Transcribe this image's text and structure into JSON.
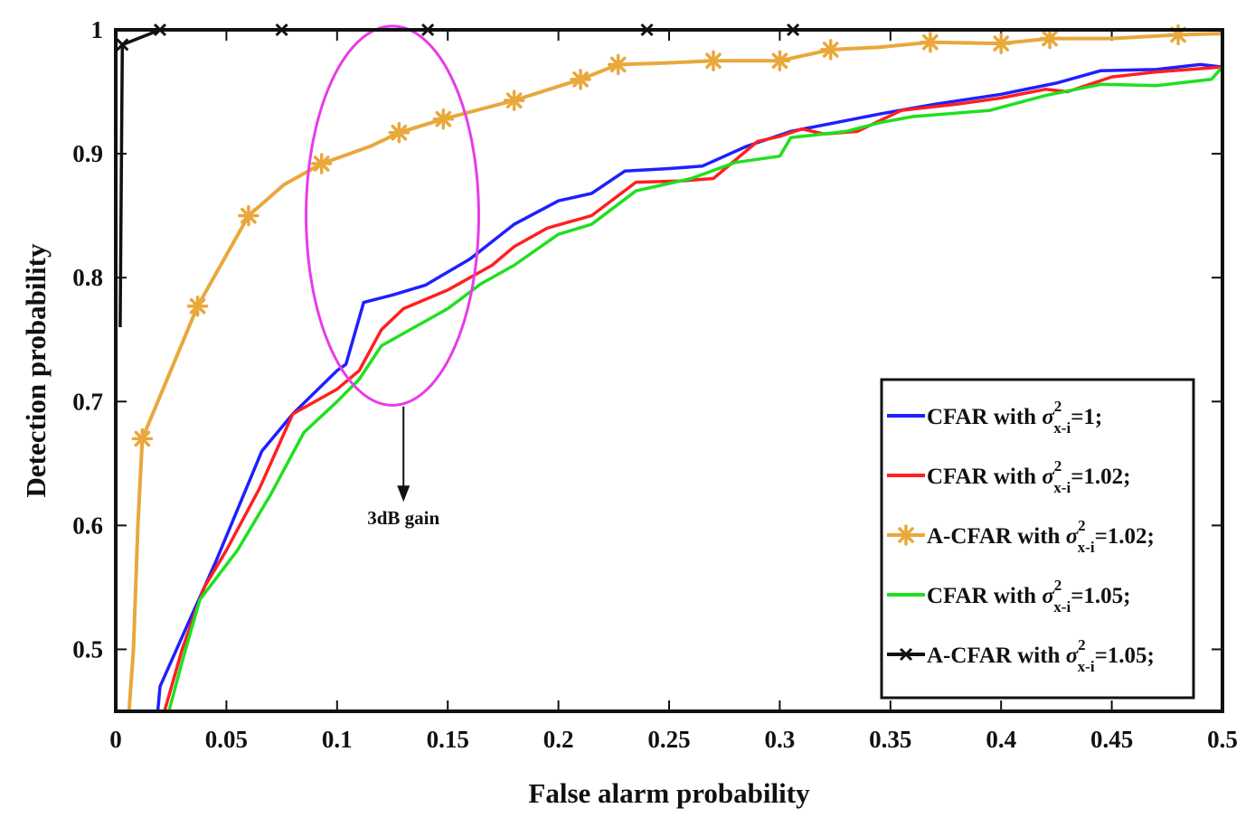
{
  "chart_data": {
    "type": "line",
    "title": "",
    "xlabel": "False alarm probability",
    "ylabel": "Detection probability",
    "xlim": [
      0,
      0.5
    ],
    "ylim": [
      0.45,
      1.0
    ],
    "xticks": [
      0,
      0.05,
      0.1,
      0.15,
      0.2,
      0.25,
      0.3,
      0.35,
      0.4,
      0.45,
      0.5
    ],
    "xtick_labels": [
      "0",
      "0.05",
      "0.1",
      "0.15",
      "0.2",
      "0.25",
      "0.3",
      "0.35",
      "0.4",
      "0.45",
      "0.5"
    ],
    "yticks": [
      0.5,
      0.6,
      0.7,
      0.8,
      0.9,
      1.0
    ],
    "ytick_labels": [
      "0.5",
      "0.6",
      "0.7",
      "0.8",
      "0.9",
      "1"
    ],
    "legend_position": "bottom-right",
    "annotation": {
      "text": "3dB gain",
      "ellipse_center": [
        0.125,
        0.85
      ],
      "ellipse_radius": [
        0.039,
        0.153
      ],
      "ellipse_color": "#e83be8",
      "arrow_from": [
        0.13,
        0.696
      ],
      "arrow_to": [
        0.13,
        0.622
      ],
      "text_at": [
        0.13,
        0.601
      ]
    },
    "series": [
      {
        "name": "CFAR with",
        "param": "=1;",
        "color": "#1f1fff",
        "marker": "none",
        "points": [
          [
            0.019,
            0.45
          ],
          [
            0.02,
            0.47
          ],
          [
            0.03,
            0.51
          ],
          [
            0.045,
            0.57
          ],
          [
            0.066,
            0.66
          ],
          [
            0.08,
            0.69
          ],
          [
            0.1,
            0.725
          ],
          [
            0.104,
            0.73
          ],
          [
            0.112,
            0.78
          ],
          [
            0.125,
            0.786
          ],
          [
            0.14,
            0.794
          ],
          [
            0.16,
            0.815
          ],
          [
            0.18,
            0.843
          ],
          [
            0.2,
            0.862
          ],
          [
            0.215,
            0.868
          ],
          [
            0.23,
            0.886
          ],
          [
            0.25,
            0.888
          ],
          [
            0.265,
            0.89
          ],
          [
            0.285,
            0.906
          ],
          [
            0.305,
            0.918
          ],
          [
            0.325,
            0.925
          ],
          [
            0.345,
            0.932
          ],
          [
            0.37,
            0.94
          ],
          [
            0.4,
            0.948
          ],
          [
            0.425,
            0.957
          ],
          [
            0.445,
            0.967
          ],
          [
            0.47,
            0.968
          ],
          [
            0.49,
            0.972
          ],
          [
            0.5,
            0.97
          ]
        ]
      },
      {
        "name": "CFAR with",
        "param": "=1.02;",
        "color": "#ff2020",
        "marker": "none",
        "points": [
          [
            0.022,
            0.45
          ],
          [
            0.03,
            0.5
          ],
          [
            0.04,
            0.55
          ],
          [
            0.05,
            0.58
          ],
          [
            0.065,
            0.63
          ],
          [
            0.08,
            0.69
          ],
          [
            0.1,
            0.71
          ],
          [
            0.11,
            0.725
          ],
          [
            0.12,
            0.758
          ],
          [
            0.13,
            0.775
          ],
          [
            0.15,
            0.79
          ],
          [
            0.17,
            0.81
          ],
          [
            0.18,
            0.825
          ],
          [
            0.195,
            0.84
          ],
          [
            0.215,
            0.85
          ],
          [
            0.235,
            0.877
          ],
          [
            0.255,
            0.878
          ],
          [
            0.27,
            0.88
          ],
          [
            0.29,
            0.91
          ],
          [
            0.3,
            0.914
          ],
          [
            0.31,
            0.92
          ],
          [
            0.32,
            0.916
          ],
          [
            0.335,
            0.918
          ],
          [
            0.355,
            0.935
          ],
          [
            0.38,
            0.94
          ],
          [
            0.4,
            0.945
          ],
          [
            0.42,
            0.952
          ],
          [
            0.43,
            0.95
          ],
          [
            0.45,
            0.962
          ],
          [
            0.47,
            0.966
          ],
          [
            0.5,
            0.97
          ]
        ]
      },
      {
        "name": "A-CFAR with",
        "param": "=1.02;",
        "color": "#e9a83c",
        "marker": "asterisk",
        "points": [
          [
            0.006,
            0.45
          ],
          [
            0.008,
            0.5
          ],
          [
            0.01,
            0.6
          ],
          [
            0.012,
            0.67
          ],
          [
            0.037,
            0.777
          ],
          [
            0.06,
            0.85
          ],
          [
            0.076,
            0.875
          ],
          [
            0.093,
            0.892
          ],
          [
            0.115,
            0.906
          ],
          [
            0.128,
            0.917
          ],
          [
            0.148,
            0.928
          ],
          [
            0.18,
            0.943
          ],
          [
            0.21,
            0.96
          ],
          [
            0.227,
            0.972
          ],
          [
            0.245,
            0.973
          ],
          [
            0.27,
            0.975
          ],
          [
            0.3,
            0.975
          ],
          [
            0.323,
            0.984
          ],
          [
            0.345,
            0.986
          ],
          [
            0.368,
            0.99
          ],
          [
            0.4,
            0.989
          ],
          [
            0.422,
            0.993
          ],
          [
            0.45,
            0.993
          ],
          [
            0.48,
            0.996
          ],
          [
            0.5,
            0.997
          ]
        ]
      },
      {
        "name": "CFAR with",
        "param": "=1.05;",
        "color": "#1fe01f",
        "marker": "none",
        "points": [
          [
            0.024,
            0.45
          ],
          [
            0.03,
            0.49
          ],
          [
            0.038,
            0.54
          ],
          [
            0.055,
            0.58
          ],
          [
            0.07,
            0.625
          ],
          [
            0.085,
            0.675
          ],
          [
            0.1,
            0.7
          ],
          [
            0.11,
            0.718
          ],
          [
            0.12,
            0.745
          ],
          [
            0.13,
            0.755
          ],
          [
            0.15,
            0.775
          ],
          [
            0.165,
            0.795
          ],
          [
            0.18,
            0.81
          ],
          [
            0.2,
            0.835
          ],
          [
            0.215,
            0.843
          ],
          [
            0.235,
            0.87
          ],
          [
            0.26,
            0.88
          ],
          [
            0.28,
            0.893
          ],
          [
            0.3,
            0.898
          ],
          [
            0.305,
            0.913
          ],
          [
            0.33,
            0.918
          ],
          [
            0.345,
            0.925
          ],
          [
            0.36,
            0.93
          ],
          [
            0.395,
            0.935
          ],
          [
            0.42,
            0.947
          ],
          [
            0.445,
            0.956
          ],
          [
            0.47,
            0.955
          ],
          [
            0.495,
            0.96
          ],
          [
            0.5,
            0.97
          ]
        ]
      },
      {
        "name": "A-CFAR with",
        "param": "=1.05;",
        "color": "#111111",
        "marker": "x",
        "points": [
          [
            0.002,
            0.76
          ],
          [
            0.003,
            0.988
          ],
          [
            0.02,
            1.0
          ],
          [
            0.075,
            1.0
          ],
          [
            0.125,
            1.0
          ],
          [
            0.175,
            1.0
          ],
          [
            0.225,
            1.0
          ],
          [
            0.275,
            1.0
          ],
          [
            0.3,
            1.0
          ],
          [
            0.35,
            1.0
          ],
          [
            0.4,
            1.0
          ],
          [
            0.45,
            1.0
          ],
          [
            0.5,
            1.0
          ]
        ]
      }
    ],
    "legend_entries": [
      {
        "label": "CFAR with",
        "symbol": "σ",
        "sup": "2",
        "sub": "x-i",
        "param": "=1;"
      },
      {
        "label": "CFAR with",
        "symbol": "σ",
        "sup": "2",
        "sub": "x-i",
        "param": "=1.02;"
      },
      {
        "label": "A-CFAR with",
        "symbol": "σ",
        "sup": "2",
        "sub": "x-i",
        "param": "=1.02;"
      },
      {
        "label": "CFAR with",
        "symbol": "σ",
        "sup": "2",
        "sub": "x-i",
        "param": "=1.05;"
      },
      {
        "label": "A-CFAR with",
        "symbol": "σ",
        "sup": "2",
        "sub": "x-i",
        "param": "=1.05;"
      }
    ],
    "marker_points": {
      "asterisk": [
        [
          0.012,
          0.67
        ],
        [
          0.037,
          0.777
        ],
        [
          0.06,
          0.85
        ],
        [
          0.093,
          0.892
        ],
        [
          0.128,
          0.917
        ],
        [
          0.148,
          0.928
        ],
        [
          0.18,
          0.943
        ],
        [
          0.21,
          0.96
        ],
        [
          0.227,
          0.972
        ],
        [
          0.27,
          0.975
        ],
        [
          0.3,
          0.975
        ],
        [
          0.323,
          0.984
        ],
        [
          0.368,
          0.99
        ],
        [
          0.4,
          0.989
        ],
        [
          0.422,
          0.993
        ],
        [
          0.48,
          0.996
        ]
      ],
      "x": [
        [
          0.003,
          0.988
        ],
        [
          0.02,
          1.0
        ],
        [
          0.075,
          1.0
        ],
        [
          0.141,
          1.0
        ],
        [
          0.24,
          1.0
        ],
        [
          0.306,
          1.0
        ]
      ]
    }
  }
}
